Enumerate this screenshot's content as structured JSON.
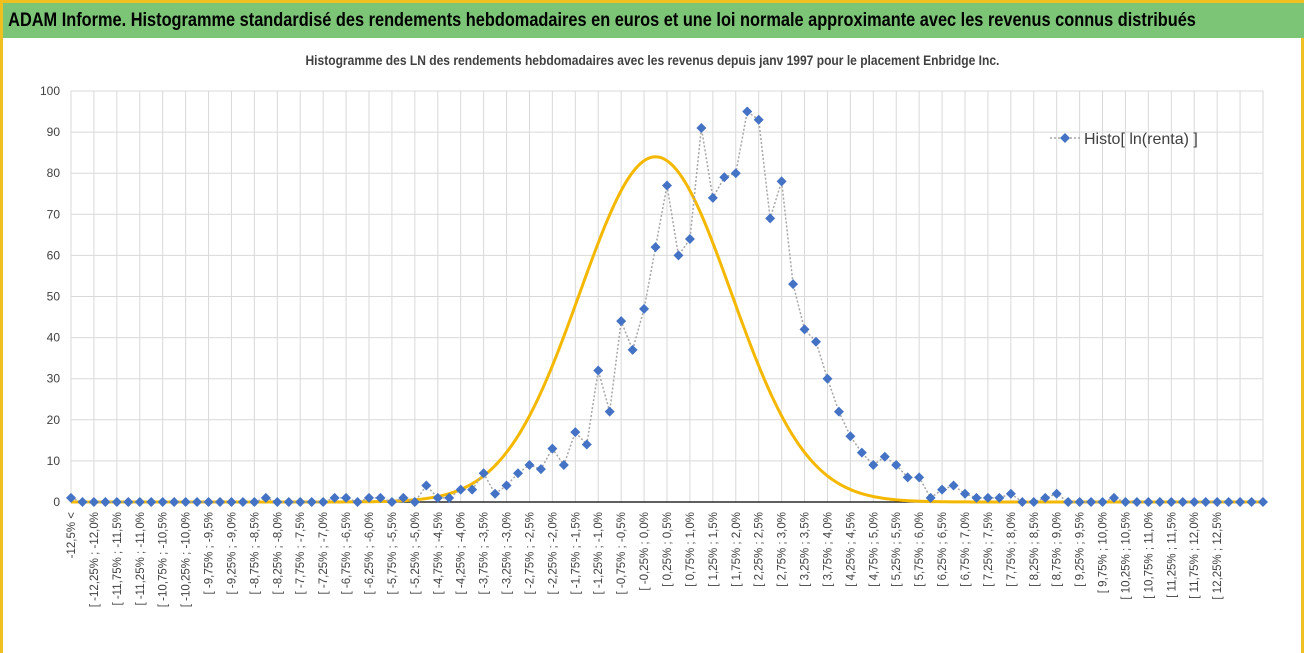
{
  "banner": {
    "title": "ADAM Informe. Histogramme standardisé des rendements hebdomadaires en euros et une loi normale approximante avec les revenus connus distribués"
  },
  "colors": {
    "banner_bg": "#7cc576",
    "frame": "#f0c020",
    "series_marker": "#4472c4",
    "series_line": "#a6a6a6",
    "normal_curve": "#f5b800"
  },
  "chart_data": {
    "type": "line",
    "title": "Histogramme  des LN des rendements hebdomadaires avec les revenus depuis janv 1997 pour le placement Enbridge Inc.",
    "ylim": [
      0,
      100
    ],
    "yticks": [
      0,
      10,
      20,
      30,
      40,
      50,
      60,
      70,
      80,
      90,
      100
    ],
    "grid": true,
    "legend_position": "top-right",
    "categories": [
      "-12,5% <",
      "[ -12,25% ; -12,0%",
      "[ -11,75% ; -11,5%",
      "[ -11,25% ; -11,0%",
      "[ -10,75% ; -10,5%",
      "[ -10,25% ; -10,0%",
      "[ -9,75% ; -9,5%",
      "[ -9,25% ; -9,0%",
      "[ -8,75% ; -8,5%",
      "[ -8,25% ; -8,0%",
      "[ -7,75% ; -7,5%",
      "[ -7,25% ; -7,0%",
      "[ -6,75% ; -6,5%",
      "[ -6,25% ; -6,0%",
      "[ -5,75% ; -5,5%",
      "[ -5,25% ; -5,0%",
      "[ -4,75% ; -4,5%",
      "[ -4,25% ; -4,0%",
      "[ -3,75% ; -3,5%",
      "[ -3,25% ; -3,0%",
      "[ -2,75% ; -2,5%",
      "[ -2,25% ; -2,0%",
      "[ -1,75% ; -1,5%",
      "[ -1,25% ; -1,0%",
      "[ -0,75% ; -0,5%",
      "[ -0,25% ; 0,0%",
      "[ 0,25% ; 0,5%",
      "[ 0,75% ; 1,0%",
      "[ 1,25% ; 1,5%",
      "[ 1,75% ; 2,0%",
      "[ 2,25% ; 2,5%",
      "[ 2,75% ; 3,0%",
      "[ 3,25% ; 3,5%",
      "[ 3,75% ; 4,0%",
      "[ 4,25% ; 4,5%",
      "[ 4,75% ; 5,0%",
      "[ 5,25% ; 5,5%",
      "[ 5,75% ; 6,0%",
      "[ 6,25% ; 6,5%",
      "[ 6,75% ; 7,0%",
      "[ 7,25% ; 7,5%",
      "[ 7,75% ; 8,0%",
      "[ 8,25% ; 8,5%",
      "[ 8,75% ; 9,0%",
      "[ 9,25% ; 9,5%",
      "[ 9,75% ; 10,0%",
      "[ 10,25% ; 10,5%",
      "[ 10,75% ; 11,0%",
      "[ 11,25% ; 11,5%",
      "[ 11,75% ; 12,0%",
      "[ 12,25% ; 12,5%"
    ],
    "histogram_values": [
      1,
      0,
      0,
      0,
      0,
      0,
      0,
      0,
      0,
      0,
      0,
      0,
      0,
      0,
      0,
      0,
      0,
      1,
      0,
      0,
      0,
      0,
      0,
      1,
      1,
      0,
      1,
      1,
      0,
      1,
      0,
      4,
      1,
      1,
      3,
      3,
      7,
      2,
      4,
      7,
      9,
      8,
      13,
      9,
      17,
      14,
      32,
      22,
      44,
      37,
      47,
      62,
      77,
      60,
      64,
      91,
      74,
      79,
      80,
      95,
      93,
      69,
      78,
      53,
      42,
      39,
      30,
      22,
      16,
      12,
      9,
      11,
      9,
      6,
      6,
      1,
      3,
      4,
      2,
      1,
      1,
      1,
      2,
      0,
      0,
      1,
      2,
      0,
      0,
      0,
      0,
      1,
      0,
      0,
      0,
      0,
      0,
      0,
      0,
      0,
      0,
      0,
      0,
      0,
      0
    ],
    "normal_curve": {
      "mean_index": 51.0,
      "sd_index": 6.6,
      "peak": 84
    },
    "series": [
      {
        "name": "Histo[ ln(renta) ]"
      }
    ]
  }
}
